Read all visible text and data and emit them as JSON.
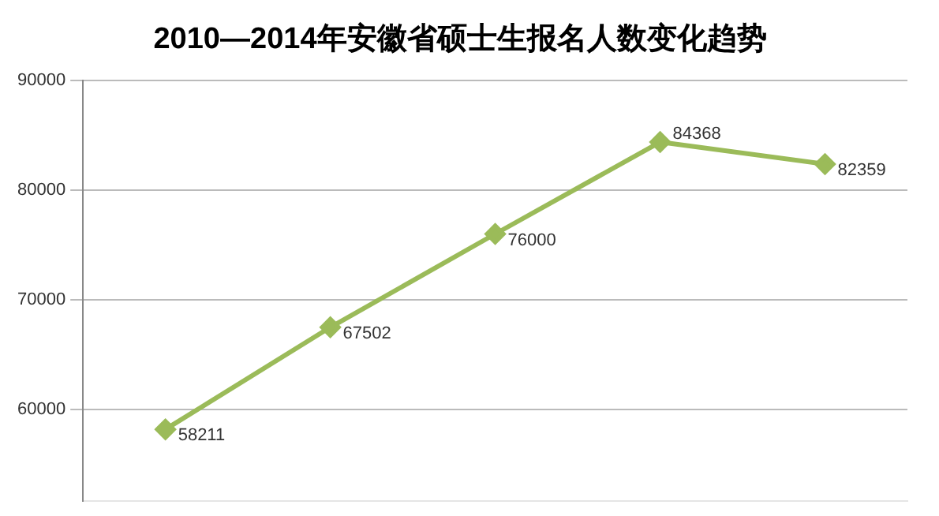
{
  "chart_data": {
    "type": "line",
    "title": "2010—2014年安徽省硕士生报名人数变化趋势",
    "categories": [
      null,
      null,
      null,
      null,
      null
    ],
    "series": [
      {
        "color": "#9bbb59",
        "values": [
          58211,
          67502,
          76000,
          84368,
          82359
        ]
      }
    ],
    "ylim": [
      51700,
      90000
    ],
    "yticks": [
      60000,
      70000,
      80000,
      90000
    ],
    "grid": "y",
    "marker": "diamond",
    "line_style": "solid",
    "data_labels": true,
    "legend": false
  }
}
